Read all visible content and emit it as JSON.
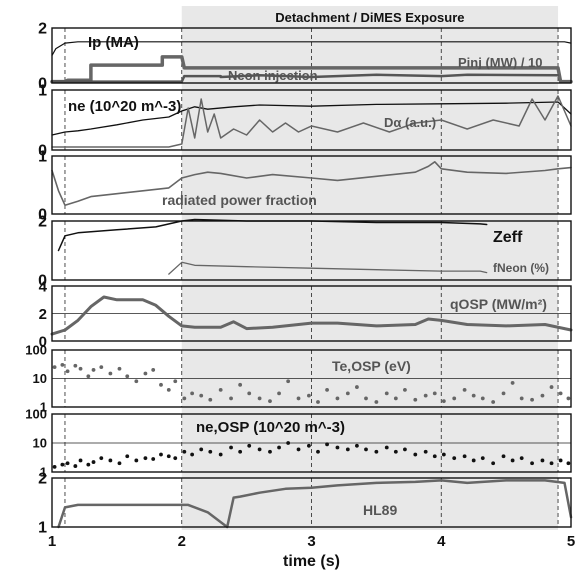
{
  "chart_data": {
    "type": "line",
    "shared_x": {
      "label": "time (s)",
      "range": [
        1,
        5
      ],
      "ticks": [
        "1",
        "2",
        "3",
        "4",
        "5"
      ],
      "vertical_dashed_lines": [
        1.1,
        2,
        3,
        4,
        4.9
      ]
    },
    "banner": {
      "text": "Detachment / DiMES Exposure",
      "x_range": [
        2,
        4.9
      ]
    },
    "panels": [
      {
        "id": "ip",
        "yrange": [
          0,
          2
        ],
        "yticks": [
          "2",
          "0"
        ],
        "ytick_values": [
          2,
          0
        ],
        "yscale": "linear",
        "labels": [
          {
            "text": "Ip (MA)",
            "color": "#111111"
          },
          {
            "text": "Neon injection",
            "color": "#555555"
          },
          {
            "text": "Pinj (MW) / 10",
            "color": "#555555"
          }
        ],
        "series": [
          {
            "name": "Ip (MA)",
            "color": "#111111",
            "width": 1.2,
            "x": [
              1.0,
              1.03,
              1.1,
              1.2,
              1.4,
              1.6,
              1.8,
              2.0,
              2.5,
              3.0,
              3.5,
              4.0,
              4.5,
              4.95,
              5.0
            ],
            "y": [
              1.0,
              1.25,
              1.45,
              1.5,
              1.5,
              1.5,
              1.5,
              1.5,
              1.5,
              1.5,
              1.5,
              1.5,
              1.5,
              1.5,
              1.45
            ]
          },
          {
            "name": "Pinj (MW) / 10",
            "color": "#666666",
            "width": 3.5,
            "x": [
              1.0,
              1.1,
              1.12,
              1.3,
              1.3,
              1.85,
              1.85,
              2.0,
              2.02,
              4.9,
              4.92,
              5.0
            ],
            "y": [
              0.05,
              0.05,
              0.1,
              0.1,
              0.65,
              0.65,
              0.95,
              0.95,
              0.55,
              0.55,
              0.05,
              0.05
            ]
          },
          {
            "name": "Neon injection",
            "color": "#555555",
            "width": 2.5,
            "x": [
              1.0,
              2.0,
              2.02,
              2.3,
              2.3,
              2.6,
              3.0,
              3.5,
              4.0,
              4.2,
              4.9
            ],
            "y": [
              0.05,
              0.05,
              0.25,
              0.25,
              0.22,
              0.28,
              0.22,
              0.3,
              0.25,
              0.3,
              0.28
            ]
          }
        ]
      },
      {
        "id": "ne",
        "yrange": [
          0,
          1
        ],
        "yticks": [
          "1",
          "0"
        ],
        "ytick_values": [
          1,
          0
        ],
        "yscale": "linear",
        "labels": [
          {
            "text": "ne (10^20 m^-3)",
            "color": "#111111"
          },
          {
            "text": "Dα (a.u.)",
            "color": "#555555"
          }
        ],
        "series": [
          {
            "name": "ne (10^20 m^-3)",
            "color": "#111111",
            "width": 1.3,
            "x": [
              1.0,
              1.1,
              1.2,
              1.3,
              1.5,
              1.7,
              1.9,
              2.0,
              2.1,
              2.2,
              2.4,
              2.6,
              3.0,
              3.5,
              4.0,
              4.5,
              4.9,
              5.0
            ],
            "y": [
              0.25,
              0.3,
              0.32,
              0.35,
              0.42,
              0.5,
              0.55,
              0.65,
              0.72,
              0.68,
              0.72,
              0.75,
              0.73,
              0.76,
              0.77,
              0.78,
              0.8,
              0.6
            ]
          },
          {
            "name": "Dα (a.u.)",
            "color": "#666666",
            "width": 1.5,
            "x": [
              1.0,
              1.5,
              1.9,
              2.0,
              2.05,
              2.1,
              2.15,
              2.2,
              2.25,
              2.3,
              2.4,
              2.5,
              2.6,
              2.7,
              2.8,
              2.9,
              3.0,
              3.2,
              3.4,
              3.6,
              3.8,
              4.0,
              4.2,
              4.4,
              4.6,
              4.7,
              4.8,
              4.9,
              5.0
            ],
            "y": [
              0.05,
              0.05,
              0.05,
              0.1,
              0.7,
              0.2,
              0.85,
              0.3,
              0.6,
              0.2,
              0.35,
              0.25,
              0.5,
              0.3,
              0.45,
              0.3,
              0.4,
              0.3,
              0.45,
              0.3,
              0.45,
              0.5,
              0.35,
              0.5,
              0.4,
              0.85,
              0.5,
              0.9,
              0.4
            ]
          }
        ]
      },
      {
        "id": "rad",
        "yrange": [
          0,
          1
        ],
        "yticks": [
          "1",
          "0"
        ],
        "ytick_values": [
          1,
          0
        ],
        "yscale": "linear",
        "labels": [
          {
            "text": "radiated power fraction",
            "color": "#555555"
          }
        ],
        "series": [
          {
            "name": "radiated power fraction",
            "color": "#666666",
            "width": 1.6,
            "x": [
              1.0,
              1.05,
              1.1,
              1.2,
              1.3,
              1.5,
              1.7,
              1.9,
              2.0,
              2.1,
              2.2,
              2.3,
              2.5,
              2.7,
              3.0,
              3.2,
              3.5,
              3.8,
              3.9,
              3.95,
              4.0,
              4.2,
              4.5,
              4.8,
              4.9,
              5.0
            ],
            "y": [
              0.75,
              0.4,
              0.15,
              0.22,
              0.3,
              0.35,
              0.4,
              0.45,
              0.62,
              0.68,
              0.72,
              0.7,
              0.62,
              0.68,
              0.62,
              0.58,
              0.65,
              0.72,
              0.82,
              0.9,
              0.78,
              0.72,
              0.7,
              0.75,
              0.78,
              0.8
            ]
          }
        ]
      },
      {
        "id": "zeff",
        "yrange": [
          0,
          2
        ],
        "yticks": [
          "2",
          "0"
        ],
        "ytick_values": [
          2,
          0
        ],
        "yscale": "linear",
        "labels": [
          {
            "text": "Zeff",
            "color": "#111111"
          },
          {
            "text": "fNeon (%)",
            "color": "#555555"
          }
        ],
        "series": [
          {
            "name": "Zeff",
            "color": "#111111",
            "width": 1.5,
            "x": [
              1.05,
              1.1,
              1.2,
              1.5,
              1.8,
              2.0,
              2.1,
              2.5,
              3.0,
              3.5,
              4.0,
              4.3,
              4.35
            ],
            "y": [
              1.0,
              1.5,
              1.6,
              1.7,
              1.8,
              2.0,
              2.05,
              2.0,
              2.0,
              1.95,
              1.95,
              1.9,
              1.88
            ]
          },
          {
            "name": "fNeon (%)",
            "color": "#666666",
            "width": 1.3,
            "x": [
              1.9,
              2.0,
              2.1,
              2.5,
              3.0,
              3.5,
              4.0,
              4.3,
              4.35
            ],
            "y": [
              0.2,
              0.6,
              0.5,
              0.45,
              0.4,
              0.35,
              0.3,
              0.3,
              0.25
            ]
          }
        ]
      },
      {
        "id": "qosp",
        "yrange": [
          0,
          4
        ],
        "yticks": [
          "4",
          "2",
          "0"
        ],
        "ytick_values": [
          4,
          2,
          0
        ],
        "yscale": "linear",
        "labels": [
          {
            "text": "qOSP (MW/m²)",
            "color": "#555555"
          }
        ],
        "series": [
          {
            "name": "qOSP (MW/m²)",
            "color": "#666666",
            "width": 3,
            "x": [
              1.0,
              1.1,
              1.2,
              1.3,
              1.4,
              1.5,
              1.7,
              1.8,
              1.9,
              2.0,
              2.1,
              2.3,
              2.4,
              2.5,
              2.7,
              3.0,
              3.2,
              3.5,
              3.8,
              3.9,
              4.0,
              4.2,
              4.5,
              4.8,
              5.0
            ],
            "y": [
              0.5,
              0.8,
              1.5,
              2.5,
              3.2,
              3.0,
              3.0,
              2.6,
              1.8,
              1.1,
              1.0,
              1.0,
              1.4,
              0.9,
              1.0,
              1.3,
              1.3,
              1.1,
              1.2,
              1.6,
              1.5,
              1.2,
              1.1,
              1.2,
              0.8
            ]
          }
        ]
      },
      {
        "id": "teosp",
        "yrange": [
          1,
          100
        ],
        "yticks": [
          "100",
          "10",
          "1"
        ],
        "ytick_values": [
          100,
          10,
          1
        ],
        "yscale": "log",
        "labels": [
          {
            "text": "Te,OSP (eV)",
            "color": "#555555"
          }
        ],
        "series": [
          {
            "name": "Te,OSP (eV)",
            "color": "#666666",
            "marker": "dot",
            "r": 1.9,
            "x": [
              1.02,
              1.08,
              1.12,
              1.18,
              1.22,
              1.28,
              1.32,
              1.38,
              1.45,
              1.52,
              1.58,
              1.65,
              1.72,
              1.78,
              1.84,
              1.9,
              1.95,
              2.02,
              2.08,
              2.15,
              2.22,
              2.3,
              2.38,
              2.45,
              2.52,
              2.6,
              2.68,
              2.75,
              2.82,
              2.9,
              2.98,
              3.05,
              3.12,
              3.2,
              3.28,
              3.35,
              3.42,
              3.5,
              3.58,
              3.65,
              3.72,
              3.8,
              3.88,
              3.95,
              4.02,
              4.1,
              4.18,
              4.25,
              4.32,
              4.4,
              4.48,
              4.55,
              4.62,
              4.7,
              4.78,
              4.85,
              4.92,
              4.98
            ],
            "y": [
              25,
              30,
              18,
              28,
              22,
              12,
              20,
              25,
              15,
              22,
              12,
              8,
              15,
              20,
              6,
              4,
              8,
              2,
              3,
              2.5,
              1.8,
              4,
              2,
              6,
              3,
              2,
              1.6,
              3,
              8,
              2,
              2.5,
              1.5,
              4,
              2,
              3,
              5,
              2,
              1.5,
              3,
              2,
              4,
              1.8,
              2.5,
              3,
              1.6,
              2,
              4,
              2.5,
              2,
              1.5,
              3,
              7,
              2,
              1.8,
              2.5,
              5,
              3,
              2
            ]
          }
        ]
      },
      {
        "id": "neosp",
        "yrange": [
          1,
          100
        ],
        "yticks": [
          "100",
          "10",
          "1"
        ],
        "ytick_values": [
          100,
          10,
          1
        ],
        "yscale": "log",
        "labels": [
          {
            "text": "ne,OSP (10^20 m^-3)",
            "color": "#111111"
          }
        ],
        "series": [
          {
            "name": "ne,OSP (10^20 m^-3)",
            "color": "#111111",
            "marker": "dot",
            "r": 1.9,
            "x": [
              1.02,
              1.08,
              1.12,
              1.18,
              1.22,
              1.28,
              1.32,
              1.38,
              1.45,
              1.52,
              1.58,
              1.65,
              1.72,
              1.78,
              1.84,
              1.9,
              1.95,
              2.02,
              2.08,
              2.15,
              2.22,
              2.3,
              2.38,
              2.45,
              2.52,
              2.6,
              2.68,
              2.75,
              2.82,
              2.9,
              2.98,
              3.05,
              3.12,
              3.2,
              3.28,
              3.35,
              3.42,
              3.5,
              3.58,
              3.65,
              3.72,
              3.8,
              3.88,
              3.95,
              4.02,
              4.1,
              4.18,
              4.25,
              4.32,
              4.4,
              4.48,
              4.55,
              4.62,
              4.7,
              4.78,
              4.85,
              4.92,
              4.98
            ],
            "y": [
              1.5,
              1.8,
              2,
              1.6,
              2.5,
              1.8,
              2.2,
              3,
              2.5,
              2,
              3.5,
              2.5,
              3,
              2.8,
              4,
              3.5,
              3,
              5,
              4,
              6,
              5,
              4,
              7,
              5,
              8,
              6,
              5,
              7,
              10,
              6,
              8,
              5,
              9,
              7,
              6,
              8,
              6,
              5,
              7,
              5,
              6,
              4,
              5,
              3.5,
              4,
              3,
              3.5,
              2.5,
              3,
              2,
              3.5,
              2.5,
              3,
              2,
              2.5,
              2,
              2.5,
              2
            ]
          }
        ]
      },
      {
        "id": "h89",
        "yrange": [
          1,
          2
        ],
        "yticks": [
          "2",
          "1"
        ],
        "ytick_values": [
          2,
          1
        ],
        "yscale": "linear",
        "labels": [
          {
            "text": "HL89",
            "color": "#555555"
          }
        ],
        "series": [
          {
            "name": "HL89",
            "color": "#666666",
            "width": 2.5,
            "x": [
              1.05,
              1.1,
              1.2,
              1.4,
              1.6,
              1.8,
              2.0,
              2.05,
              2.2,
              2.3,
              2.35,
              2.4,
              2.45,
              2.6,
              2.8,
              3.0,
              3.2,
              3.5,
              3.8,
              4.0,
              4.2,
              4.5,
              4.8,
              4.95,
              5.0
            ],
            "y": [
              1.0,
              1.4,
              1.45,
              1.45,
              1.45,
              1.45,
              1.45,
              1.45,
              1.3,
              1.1,
              1.0,
              1.6,
              1.62,
              1.7,
              1.78,
              1.8,
              1.85,
              1.9,
              1.92,
              1.95,
              1.9,
              1.95,
              1.95,
              1.9,
              1.2
            ]
          }
        ]
      }
    ]
  }
}
